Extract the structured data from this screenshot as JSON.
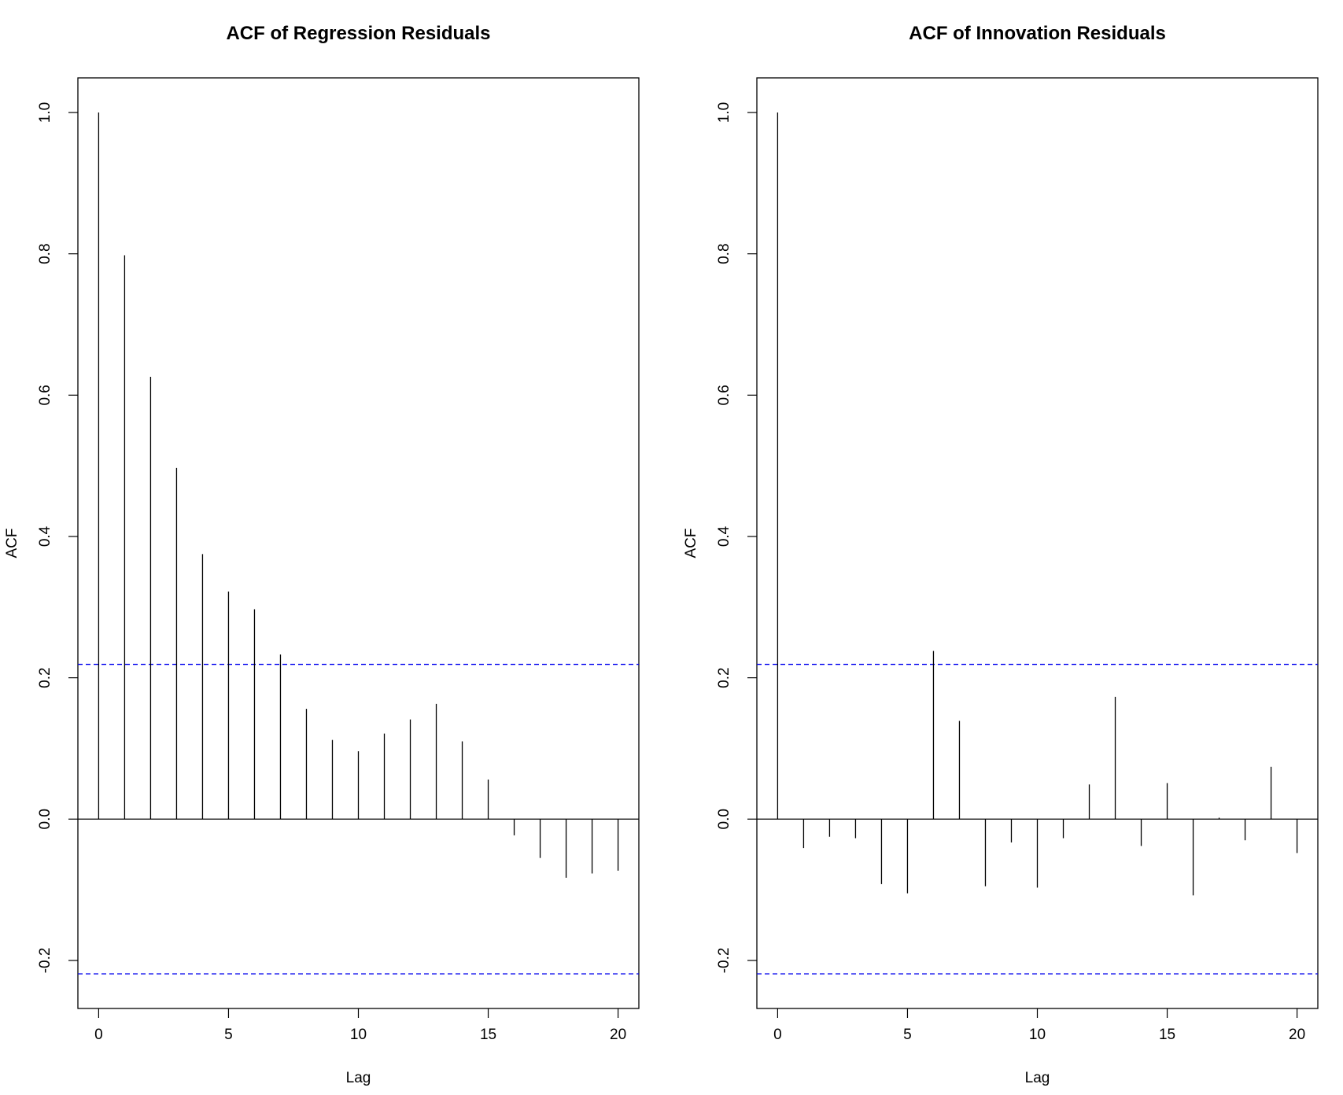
{
  "chart_data": [
    {
      "type": "bar",
      "title": "ACF of Regression Residuals",
      "xlabel": "Lag",
      "ylabel": "ACF",
      "x": [
        0,
        1,
        2,
        3,
        4,
        5,
        6,
        7,
        8,
        9,
        10,
        11,
        12,
        13,
        14,
        15,
        16,
        17,
        18,
        19,
        20
      ],
      "values": [
        1.0,
        0.798,
        0.626,
        0.497,
        0.375,
        0.322,
        0.297,
        0.233,
        0.156,
        0.112,
        0.096,
        0.121,
        0.141,
        0.163,
        0.11,
        0.056,
        -0.023,
        -0.055,
        -0.083,
        -0.077,
        -0.073
      ],
      "confidence_bound": 0.219,
      "xlim": [
        -0.8,
        20.8
      ],
      "ylim": [
        -0.268,
        1.049
      ],
      "xticks": [
        0,
        5,
        10,
        15,
        20
      ],
      "xtick_labels": [
        "0",
        "5",
        "10",
        "15",
        "20"
      ],
      "yticks": [
        -0.2,
        0.0,
        0.2,
        0.4,
        0.6,
        0.8,
        1.0
      ],
      "ytick_labels": [
        "-0.2",
        "0.0",
        "0.2",
        "0.4",
        "0.6",
        "0.8",
        "1.0"
      ],
      "colors": {
        "bars": "#000000",
        "bounds": "#0000ee"
      }
    },
    {
      "type": "bar",
      "title": "ACF of Innovation Residuals",
      "xlabel": "Lag",
      "ylabel": "ACF",
      "x": [
        0,
        1,
        2,
        3,
        4,
        5,
        6,
        7,
        8,
        9,
        10,
        11,
        12,
        13,
        14,
        15,
        16,
        17,
        18,
        19,
        20
      ],
      "values": [
        1.0,
        -0.041,
        -0.025,
        -0.027,
        -0.092,
        -0.105,
        0.238,
        0.139,
        -0.095,
        -0.033,
        -0.097,
        -0.027,
        0.049,
        0.173,
        -0.038,
        0.051,
        -0.108,
        0.002,
        -0.03,
        0.074,
        -0.048
      ],
      "confidence_bound": 0.219,
      "xlim": [
        -0.8,
        20.8
      ],
      "ylim": [
        -0.268,
        1.049
      ],
      "xticks": [
        0,
        5,
        10,
        15,
        20
      ],
      "xtick_labels": [
        "0",
        "5",
        "10",
        "15",
        "20"
      ],
      "yticks": [
        -0.2,
        0.0,
        0.2,
        0.4,
        0.6,
        0.8,
        1.0
      ],
      "ytick_labels": [
        "-0.2",
        "0.0",
        "0.2",
        "0.4",
        "0.6",
        "0.8",
        "1.0"
      ],
      "colors": {
        "bars": "#000000",
        "bounds": "#0000ee"
      }
    }
  ]
}
